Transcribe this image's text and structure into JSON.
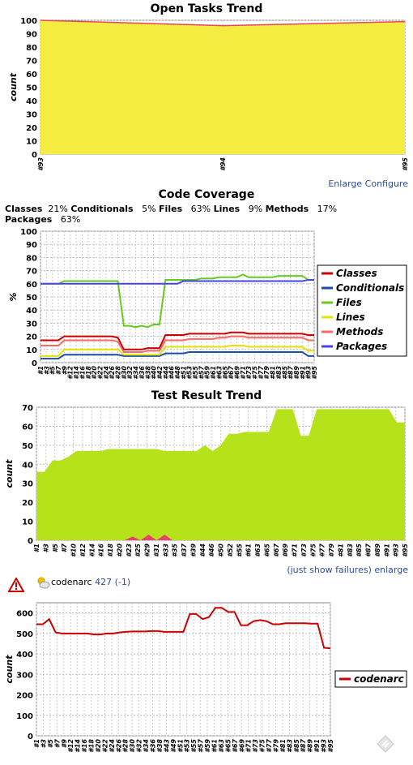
{
  "open_tasks": {
    "title": "Open Tasks Trend",
    "links": {
      "enlarge": "Enlarge",
      "configure": "Configure"
    }
  },
  "coverage": {
    "title": "Code Coverage",
    "summary": [
      {
        "label": "Classes",
        "value": "21%"
      },
      {
        "label": "Conditionals",
        "value": "5%"
      },
      {
        "label": "Files",
        "value": "63%"
      },
      {
        "label": "Lines",
        "value": "9%"
      },
      {
        "label": "Methods",
        "value": "17%"
      },
      {
        "label": "Packages",
        "value": "63%"
      }
    ]
  },
  "test_result": {
    "title": "Test Result Trend",
    "links": {
      "failures": "(just show failures)",
      "enlarge": "enlarge"
    }
  },
  "codenarc": {
    "name": "codenarc",
    "count": "427 (-1)",
    "icons": [
      "warning-triangle-icon",
      "weather-partly-sunny-icon",
      "drag-handle-icon"
    ]
  },
  "colors": {
    "yellow": "#f5ec42",
    "red_line": "#e8445a",
    "green": "#b5e21b",
    "pink": "#e8446a",
    "classes": "#cc0000",
    "conditionals": "#1a4fa8",
    "files": "#66cc1a",
    "lines": "#e8e000",
    "methods": "#ff6666",
    "packages": "#4444ee",
    "codenarc": "#cc0000"
  },
  "chart_data": [
    {
      "type": "area",
      "title": "Open Tasks Trend",
      "xlabel": "",
      "ylabel": "count",
      "ylim": [
        0,
        100
      ],
      "yticks": [
        0,
        10,
        20,
        30,
        40,
        50,
        60,
        70,
        80,
        90,
        100
      ],
      "x": [
        "#93",
        "#94",
        "#95"
      ],
      "series": [
        {
          "name": "",
          "values": [
            100,
            96,
            99
          ]
        }
      ],
      "grid": true
    },
    {
      "type": "line",
      "title": "Code Coverage",
      "xlabel": "",
      "ylabel": "%",
      "ylim": [
        0,
        100
      ],
      "yticks": [
        0,
        10,
        20,
        30,
        40,
        50,
        60,
        70,
        80,
        90,
        100
      ],
      "x": [
        "#1",
        "#3",
        "#5",
        "#7",
        "#9",
        "#12",
        "#14",
        "#16",
        "#18",
        "#20",
        "#22",
        "#24",
        "#26",
        "#28",
        "#30",
        "#32",
        "#34",
        "#36",
        "#38",
        "#40",
        "#42",
        "#44",
        "#46",
        "#48",
        "#51",
        "#53",
        "#55",
        "#57",
        "#59",
        "#61",
        "#63",
        "#65",
        "#67",
        "#69",
        "#71",
        "#73",
        "#75",
        "#77",
        "#79",
        "#81",
        "#83",
        "#85",
        "#87",
        "#89",
        "#91",
        "#93",
        "#95"
      ],
      "xticks": [
        "#1",
        "#3",
        "#5",
        "#7",
        "#9",
        "#12",
        "#14",
        "#16",
        "#18",
        "#20",
        "#22",
        "#24",
        "#26",
        "#28",
        "#30",
        "#32",
        "#34",
        "#36",
        "#38",
        "#40",
        "#42",
        "#44",
        "#46",
        "#48",
        "#51",
        "#53",
        "#55",
        "#57",
        "#59",
        "#61",
        "#63",
        "#65",
        "#67",
        "#69",
        "#71",
        "#73",
        "#75",
        "#77",
        "#79",
        "#81",
        "#83",
        "#85",
        "#87",
        "#89",
        "#91",
        "#93",
        "#95"
      ],
      "legend": "right",
      "series": [
        {
          "name": "Classes",
          "values": [
            17,
            17,
            17,
            17,
            20,
            20,
            20,
            20,
            20,
            20,
            20,
            20,
            20,
            19,
            10,
            10,
            10,
            10,
            11,
            11,
            11,
            21,
            21,
            21,
            21,
            22,
            22,
            22,
            22,
            22,
            22,
            22,
            23,
            23,
            23,
            22,
            22,
            22,
            22,
            22,
            22,
            22,
            22,
            22,
            22,
            21,
            21
          ]
        },
        {
          "name": "Conditionals",
          "values": [
            3,
            3,
            3,
            3,
            6,
            6,
            6,
            6,
            6,
            6,
            6,
            6,
            6,
            6,
            5,
            5,
            5,
            5,
            5,
            5,
            5,
            7,
            7,
            7,
            7,
            8,
            8,
            8,
            8,
            8,
            8,
            8,
            8,
            8,
            8,
            8,
            8,
            8,
            8,
            8,
            8,
            8,
            8,
            8,
            8,
            5,
            5
          ]
        },
        {
          "name": "Files",
          "values": [
            60,
            60,
            60,
            60,
            62,
            62,
            62,
            62,
            62,
            62,
            62,
            62,
            62,
            62,
            28,
            28,
            27,
            28,
            27,
            29,
            29,
            63,
            63,
            63,
            63,
            63,
            63,
            64,
            64,
            64,
            65,
            65,
            65,
            65,
            67,
            65,
            65,
            65,
            65,
            65,
            66,
            66,
            66,
            66,
            66,
            63,
            63
          ]
        },
        {
          "name": "Lines",
          "values": [
            5,
            5,
            5,
            5,
            10,
            10,
            10,
            10,
            10,
            10,
            10,
            10,
            10,
            10,
            6,
            6,
            6,
            6,
            6,
            6,
            6,
            12,
            12,
            12,
            12,
            12,
            12,
            12,
            12,
            12,
            12,
            12,
            13,
            13,
            13,
            12,
            12,
            12,
            12,
            12,
            12,
            12,
            12,
            12,
            12,
            9,
            9
          ]
        },
        {
          "name": "Methods",
          "values": [
            13,
            13,
            13,
            13,
            17,
            17,
            17,
            17,
            17,
            17,
            17,
            17,
            17,
            16,
            8,
            8,
            8,
            8,
            9,
            9,
            9,
            17,
            17,
            17,
            17,
            18,
            18,
            18,
            18,
            18,
            19,
            19,
            20,
            20,
            20,
            19,
            19,
            19,
            19,
            19,
            19,
            19,
            19,
            19,
            19,
            17,
            17
          ]
        },
        {
          "name": "Packages",
          "values": [
            60,
            60,
            60,
            60,
            60,
            60,
            60,
            60,
            60,
            60,
            60,
            60,
            60,
            60,
            60,
            60,
            60,
            60,
            60,
            60,
            60,
            60,
            60,
            60,
            62,
            62,
            62,
            62,
            62,
            62,
            62,
            62,
            62,
            62,
            62,
            62,
            62,
            62,
            62,
            62,
            62,
            62,
            62,
            62,
            62,
            63,
            63
          ]
        }
      ],
      "grid": true
    },
    {
      "type": "area",
      "title": "Test Result Trend",
      "xlabel": "",
      "ylabel": "count",
      "ylim": [
        0,
        70
      ],
      "yticks": [
        0,
        10,
        20,
        30,
        40,
        50,
        60,
        70
      ],
      "x": [
        "#1",
        "#3",
        "#5",
        "#7",
        "#9",
        "#12",
        "#14",
        "#16",
        "#18",
        "#20",
        "#22",
        "#24",
        "#26",
        "#28",
        "#30",
        "#32",
        "#34",
        "#36",
        "#38",
        "#40",
        "#42",
        "#44",
        "#46",
        "#48",
        "#51",
        "#53",
        "#55",
        "#57",
        "#59",
        "#61",
        "#63",
        "#65",
        "#67",
        "#69",
        "#71",
        "#73",
        "#75",
        "#77",
        "#79",
        "#81",
        "#83",
        "#85",
        "#87",
        "#89",
        "#91",
        "#93",
        "#95"
      ],
      "xticks": [
        "#1",
        "#3",
        "#5",
        "#7",
        "#10",
        "#12",
        "#14",
        "#16",
        "#18",
        "#20",
        "#23",
        "#25",
        "#29",
        "#31",
        "#33",
        "#35",
        "#37",
        "#39",
        "#44",
        "#46",
        "#50",
        "#52",
        "#55",
        "#61",
        "#63",
        "#65",
        "#67",
        "#69",
        "#71",
        "#73",
        "#75",
        "#77",
        "#79",
        "#81",
        "#83",
        "#85",
        "#87",
        "#89",
        "#91",
        "#93",
        "#95"
      ],
      "series": [
        {
          "name": "",
          "values": [
            36,
            36,
            42,
            42,
            44,
            47,
            47,
            47,
            47,
            48,
            48,
            48,
            48,
            48,
            48,
            48,
            47,
            47,
            47,
            47,
            47,
            50,
            47,
            50,
            56,
            56,
            57,
            57,
            57,
            57,
            69,
            69,
            69,
            55,
            55,
            69,
            69,
            69,
            69,
            69,
            69,
            69,
            69,
            69,
            69,
            62,
            62
          ]
        },
        {
          "name": "",
          "values": [
            0,
            0,
            0,
            0,
            0,
            0,
            0,
            0,
            0,
            0,
            0,
            0,
            2,
            0,
            3,
            0,
            3,
            0,
            0,
            0,
            0,
            0,
            0,
            0,
            0,
            0,
            0,
            0,
            0,
            0,
            0,
            0,
            0,
            0,
            0,
            0,
            0,
            0,
            0,
            0,
            0,
            0,
            0,
            0,
            0,
            0,
            0
          ]
        }
      ],
      "grid": true
    },
    {
      "type": "line",
      "title": "",
      "xlabel": "",
      "ylabel": "count",
      "ylim": [
        0,
        650
      ],
      "yticks": [
        0,
        100,
        200,
        300,
        400,
        500,
        600
      ],
      "x": [
        "#1",
        "#3",
        "#5",
        "#7",
        "#9",
        "#12",
        "#14",
        "#16",
        "#18",
        "#20",
        "#22",
        "#24",
        "#26",
        "#28",
        "#30",
        "#32",
        "#34",
        "#36",
        "#38",
        "#40",
        "#42",
        "#44",
        "#46",
        "#48",
        "#51",
        "#53",
        "#55",
        "#57",
        "#59",
        "#61",
        "#63",
        "#65",
        "#67",
        "#69",
        "#71",
        "#73",
        "#75",
        "#77",
        "#79",
        "#81",
        "#83",
        "#85",
        "#87",
        "#89",
        "#91",
        "#93",
        "#95"
      ],
      "xticks": [
        "#1",
        "#3",
        "#5",
        "#7",
        "#9",
        "#12",
        "#14",
        "#16",
        "#18",
        "#20",
        "#22",
        "#24",
        "#26",
        "#28",
        "#30",
        "#32",
        "#34",
        "#36",
        "#38",
        "#43",
        "#49",
        "#51",
        "#53",
        "#55",
        "#57",
        "#59",
        "#61",
        "#63",
        "#65",
        "#67",
        "#69",
        "#71",
        "#73",
        "#75",
        "#77",
        "#79",
        "#81",
        "#83",
        "#85",
        "#87",
        "#89",
        "#91",
        "#93",
        "#95"
      ],
      "legend": "right",
      "series": [
        {
          "name": "codenarc",
          "values": [
            545,
            545,
            570,
            505,
            500,
            500,
            500,
            500,
            500,
            495,
            495,
            500,
            500,
            505,
            508,
            510,
            510,
            510,
            512,
            512,
            508,
            508,
            508,
            508,
            595,
            595,
            570,
            580,
            625,
            625,
            605,
            605,
            540,
            540,
            560,
            565,
            560,
            545,
            545,
            550,
            550,
            550,
            550,
            548,
            548,
            430,
            427
          ]
        }
      ],
      "grid": true
    }
  ]
}
